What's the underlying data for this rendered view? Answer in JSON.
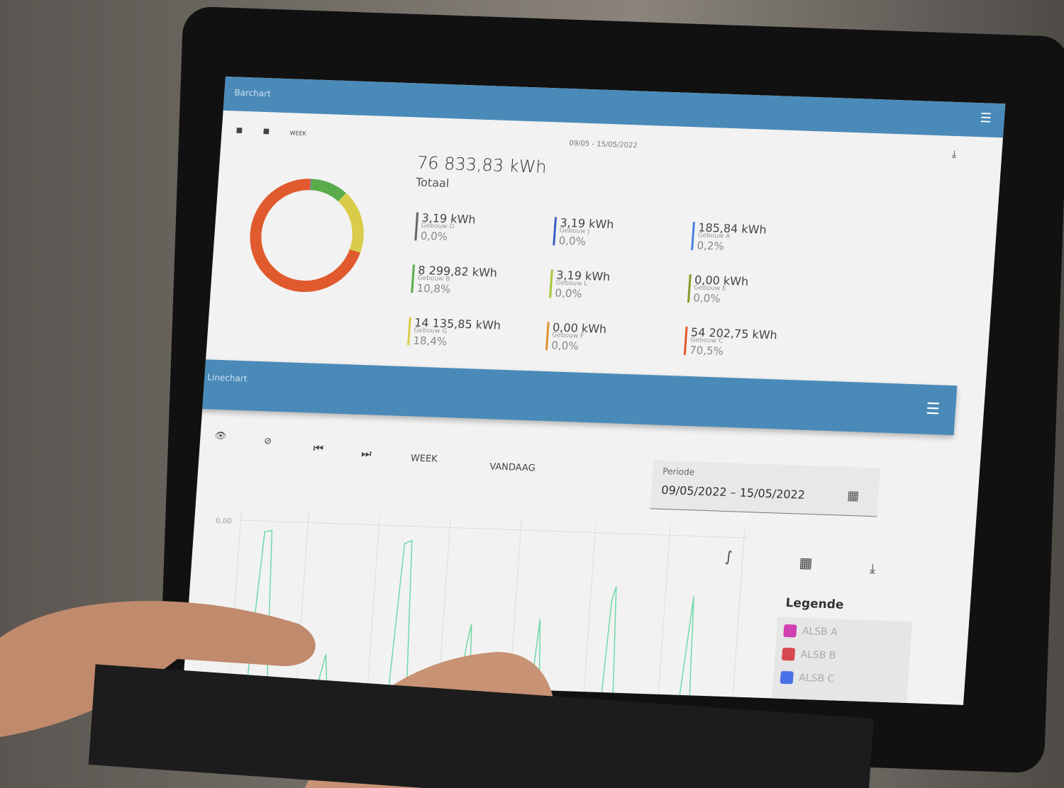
{
  "header": {
    "title": "Barchart",
    "range": "WEEK",
    "date": "09/05 - 15/05/2022"
  },
  "summary": {
    "total": "76 833,83 kWh",
    "total_label": "Totaal"
  },
  "chart_data": {
    "type": "donut",
    "categories": [
      "Gebouw D",
      "Gebouw J",
      "Gebouw A",
      "Gebouw B",
      "Gebouw L",
      "Gebouw E",
      "Gebouw G",
      "Gebouw F",
      "Gebouw C"
    ],
    "energy_labels": [
      "3,19 kWh",
      "3,19 kWh",
      "185,84 kWh",
      "8 299,82 kWh",
      "3,19 kWh",
      "0,00 kWh",
      "14 135,85 kWh",
      "0,00 kWh",
      "54 202,75 kWh"
    ],
    "values": [
      0.0,
      0.0,
      0.2,
      10.8,
      0.0,
      0.0,
      18.4,
      0.0,
      70.5
    ],
    "value_labels": [
      "0,0%",
      "0,0%",
      "0,2%",
      "10,8%",
      "0,0%",
      "0,0%",
      "18,4%",
      "0,0%",
      "70,5%"
    ],
    "colors": [
      "#666666",
      "#3a5fc8",
      "#4a7fe0",
      "#5aac4a",
      "#a8c83a",
      "#8a9a2a",
      "#d8cc48",
      "#e09030",
      "#e05a2e"
    ]
  },
  "linechart": {
    "title": "Linechart",
    "range": "WEEK",
    "today": "VANDAAG",
    "period_label": "Periode",
    "period": "09/05/2022 – 15/05/2022",
    "y_label": "0,00",
    "legend_title": "Legende",
    "legend": [
      {
        "name": "ALSB A",
        "color": "#d040b0"
      },
      {
        "name": "ALSB B",
        "color": "#d84850"
      },
      {
        "name": "ALSB C",
        "color": "#4a70e8"
      }
    ]
  }
}
